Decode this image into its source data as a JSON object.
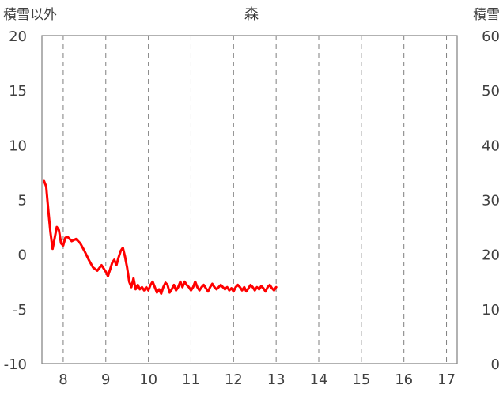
{
  "chart_data": {
    "type": "line+bar",
    "title": "森",
    "y_left_label": "積雪以外",
    "y_right_label": "積雪",
    "y_left_lim": [
      -10,
      20
    ],
    "y_left_ticks": [
      20,
      15,
      10,
      5,
      0,
      -5,
      -10
    ],
    "y_right_lim": [
      0,
      60
    ],
    "y_right_ticks": [
      60,
      50,
      40,
      30,
      20,
      10,
      0
    ],
    "x_lim": [
      7.5,
      17.25
    ],
    "x_ticks": [
      8,
      9,
      10,
      11,
      12,
      13,
      14,
      15,
      16,
      17
    ],
    "grid": {
      "vertical_dashed": true,
      "horizontal": false
    },
    "colors": {
      "red": "#ff0000",
      "green": "#92d050",
      "purple": "#7030a0",
      "yellow_bars": "#ffc000",
      "blue_bars": "#0070c0"
    },
    "series": [
      {
        "type": "line",
        "axis": "left",
        "color": "#ff0000",
        "points": [
          [
            7.55,
            6.7
          ],
          [
            7.6,
            6.2
          ],
          [
            7.65,
            4.0
          ],
          [
            7.7,
            2.0
          ],
          [
            7.75,
            0.5
          ],
          [
            7.8,
            1.5
          ],
          [
            7.85,
            2.5
          ],
          [
            7.9,
            2.2
          ],
          [
            7.95,
            1.0
          ],
          [
            8.0,
            0.8
          ],
          [
            8.05,
            1.5
          ],
          [
            8.1,
            1.6
          ],
          [
            8.2,
            1.2
          ],
          [
            8.3,
            1.4
          ],
          [
            8.4,
            1.0
          ],
          [
            8.5,
            0.3
          ],
          [
            8.6,
            -0.5
          ],
          [
            8.7,
            -1.2
          ],
          [
            8.8,
            -1.5
          ],
          [
            8.9,
            -1.0
          ],
          [
            9.0,
            -1.6
          ],
          [
            9.05,
            -2.0
          ],
          [
            9.1,
            -1.4
          ],
          [
            9.15,
            -0.8
          ],
          [
            9.2,
            -0.5
          ],
          [
            9.25,
            -1.0
          ],
          [
            9.3,
            -0.3
          ],
          [
            9.35,
            0.3
          ],
          [
            9.4,
            0.6
          ],
          [
            9.45,
            -0.2
          ],
          [
            9.5,
            -1.2
          ],
          [
            9.55,
            -2.5
          ],
          [
            9.6,
            -3.0
          ],
          [
            9.65,
            -2.2
          ],
          [
            9.7,
            -3.2
          ],
          [
            9.75,
            -2.8
          ],
          [
            9.8,
            -3.2
          ],
          [
            9.85,
            -3.0
          ],
          [
            9.9,
            -3.3
          ],
          [
            9.95,
            -3.0
          ],
          [
            10.0,
            -3.3
          ],
          [
            10.05,
            -2.8
          ],
          [
            10.1,
            -2.5
          ],
          [
            10.15,
            -3.0
          ],
          [
            10.2,
            -3.5
          ],
          [
            10.25,
            -3.2
          ],
          [
            10.3,
            -3.6
          ],
          [
            10.35,
            -3.0
          ],
          [
            10.4,
            -2.6
          ],
          [
            10.45,
            -2.8
          ],
          [
            10.5,
            -3.5
          ],
          [
            10.55,
            -3.2
          ],
          [
            10.6,
            -2.8
          ],
          [
            10.65,
            -3.3
          ],
          [
            10.7,
            -3.0
          ],
          [
            10.75,
            -2.5
          ],
          [
            10.8,
            -3.0
          ],
          [
            10.85,
            -2.5
          ],
          [
            10.9,
            -2.8
          ],
          [
            10.95,
            -3.0
          ],
          [
            11.0,
            -3.3
          ],
          [
            11.05,
            -3.0
          ],
          [
            11.1,
            -2.5
          ],
          [
            11.15,
            -3.0
          ],
          [
            11.2,
            -3.3
          ],
          [
            11.25,
            -3.0
          ],
          [
            11.3,
            -2.8
          ],
          [
            11.35,
            -3.1
          ],
          [
            11.4,
            -3.4
          ],
          [
            11.45,
            -3.0
          ],
          [
            11.5,
            -2.7
          ],
          [
            11.55,
            -3.0
          ],
          [
            11.6,
            -3.2
          ],
          [
            11.65,
            -3.0
          ],
          [
            11.7,
            -2.8
          ],
          [
            11.75,
            -3.0
          ],
          [
            11.8,
            -3.2
          ],
          [
            11.85,
            -3.0
          ],
          [
            11.9,
            -3.3
          ],
          [
            11.95,
            -3.1
          ],
          [
            12.0,
            -3.4
          ],
          [
            12.05,
            -3.0
          ],
          [
            12.1,
            -2.8
          ],
          [
            12.15,
            -3.0
          ],
          [
            12.2,
            -3.3
          ],
          [
            12.25,
            -3.0
          ],
          [
            12.3,
            -3.4
          ],
          [
            12.35,
            -3.1
          ],
          [
            12.4,
            -2.8
          ],
          [
            12.45,
            -3.0
          ],
          [
            12.5,
            -3.3
          ],
          [
            12.55,
            -3.0
          ],
          [
            12.6,
            -3.2
          ],
          [
            12.65,
            -2.9
          ],
          [
            12.7,
            -3.1
          ],
          [
            12.75,
            -3.4
          ],
          [
            12.8,
            -3.0
          ],
          [
            12.85,
            -2.8
          ],
          [
            12.9,
            -3.1
          ],
          [
            12.95,
            -3.3
          ],
          [
            13.0,
            -3.0
          ]
        ]
      }
    ]
  }
}
